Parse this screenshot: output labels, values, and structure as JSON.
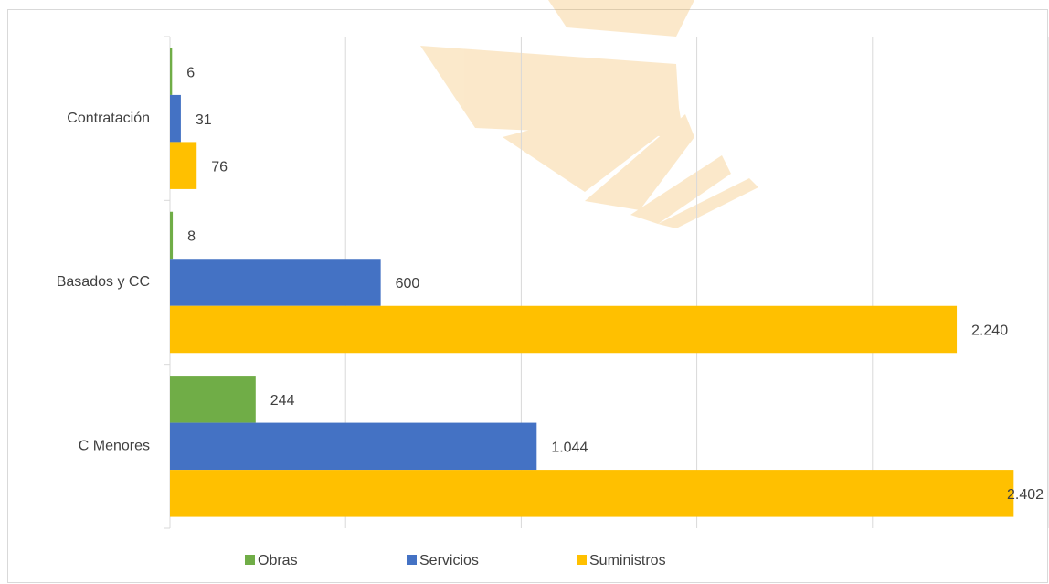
{
  "chart_data": {
    "type": "hbar",
    "categories": [
      "Contratación",
      "Basados y CC",
      "C Menores"
    ],
    "series": [
      {
        "name": "Obras",
        "color": "#70ad47",
        "values": [
          6,
          8,
          244
        ]
      },
      {
        "name": "Servicios",
        "color": "#4472c4",
        "values": [
          31,
          600,
          1044
        ],
        "value_labels": [
          "31",
          "600",
          "1.044"
        ]
      },
      {
        "name": "Suministros",
        "color": "#ffc000",
        "values": [
          76,
          2240,
          2402
        ],
        "value_labels": [
          "76",
          "2.240",
          "2.402"
        ]
      }
    ],
    "xlim": [
      0,
      2500
    ],
    "xticks": [
      0,
      500,
      1000,
      1500,
      2000,
      2500
    ],
    "grid": true,
    "legend": "bottom"
  }
}
